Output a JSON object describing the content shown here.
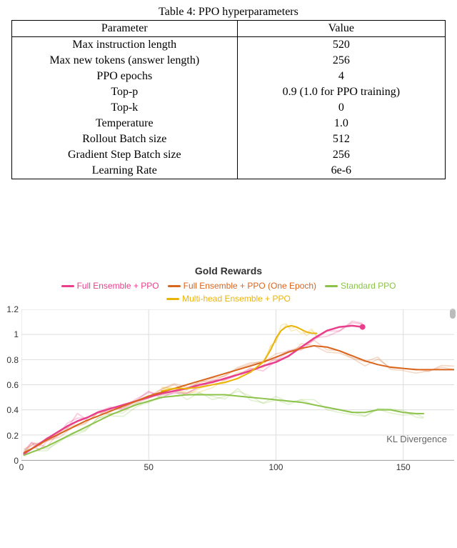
{
  "table": {
    "caption": "Table 4: PPO hyperparameters",
    "columns": [
      "Parameter",
      "Value"
    ],
    "rows": [
      [
        "Max instruction length",
        "520"
      ],
      [
        "Max new tokens (answer length)",
        "256"
      ],
      [
        "PPO epochs",
        "4"
      ],
      [
        "Top-p",
        "0.9 (1.0 for PPO training)"
      ],
      [
        "Top-k",
        "0"
      ],
      [
        "Temperature",
        "1.0"
      ],
      [
        "Rollout Batch size",
        "512"
      ],
      [
        "Gradient Step Batch size",
        "256"
      ],
      [
        "Learning Rate",
        "6e-6"
      ]
    ],
    "col_widths": [
      "52%",
      "48%"
    ],
    "caption_fontsize": 16,
    "cell_fontsize": 16
  },
  "chart": {
    "type": "line",
    "title": "Gold Rewards",
    "title_fontsize": 14,
    "title_color": "#333333",
    "xlabel": "KL Divergence",
    "xlabel_fontsize": 13,
    "xlabel_color": "#666666",
    "xlim": [
      0,
      170
    ],
    "ylim": [
      0,
      1.2
    ],
    "xticks": [
      0,
      50,
      100,
      150
    ],
    "yticks": [
      0,
      0.2,
      0.4,
      0.6,
      0.8,
      1,
      1.2
    ],
    "background_color": "#ffffff",
    "grid_color": "#dddddd",
    "axis_color": "#aaaaaa",
    "tick_fontsize": 12,
    "tick_color": "#333333",
    "legend_fontsize": 12,
    "series": [
      {
        "name": "Full Ensemble + PPO",
        "color": "#e83e8c",
        "line_width": 2.5,
        "data": [
          [
            1,
            0.05
          ],
          [
            4,
            0.09
          ],
          [
            7,
            0.13
          ],
          [
            10,
            0.17
          ],
          [
            14,
            0.22
          ],
          [
            18,
            0.27
          ],
          [
            22,
            0.31
          ],
          [
            26,
            0.34
          ],
          [
            30,
            0.38
          ],
          [
            35,
            0.41
          ],
          [
            40,
            0.44
          ],
          [
            45,
            0.47
          ],
          [
            50,
            0.5
          ],
          [
            55,
            0.53
          ],
          [
            60,
            0.55
          ],
          [
            65,
            0.57
          ],
          [
            70,
            0.6
          ],
          [
            75,
            0.62
          ],
          [
            80,
            0.65
          ],
          [
            85,
            0.68
          ],
          [
            90,
            0.71
          ],
          [
            95,
            0.75
          ],
          [
            100,
            0.78
          ],
          [
            105,
            0.83
          ],
          [
            110,
            0.9
          ],
          [
            115,
            0.97
          ],
          [
            120,
            1.03
          ],
          [
            125,
            1.06
          ],
          [
            130,
            1.07
          ],
          [
            134,
            1.06
          ]
        ],
        "end_marker": {
          "x": 134,
          "y": 1.06,
          "size": 4
        }
      },
      {
        "name": "Full Ensemble + PPO (One Epoch)",
        "color": "#d9641c",
        "line_width": 2,
        "data": [
          [
            1,
            0.06
          ],
          [
            5,
            0.1
          ],
          [
            10,
            0.16
          ],
          [
            15,
            0.21
          ],
          [
            20,
            0.26
          ],
          [
            25,
            0.31
          ],
          [
            30,
            0.35
          ],
          [
            35,
            0.39
          ],
          [
            40,
            0.43
          ],
          [
            45,
            0.47
          ],
          [
            50,
            0.51
          ],
          [
            55,
            0.54
          ],
          [
            60,
            0.57
          ],
          [
            65,
            0.6
          ],
          [
            70,
            0.63
          ],
          [
            75,
            0.66
          ],
          [
            80,
            0.69
          ],
          [
            85,
            0.72
          ],
          [
            90,
            0.75
          ],
          [
            95,
            0.78
          ],
          [
            100,
            0.82
          ],
          [
            105,
            0.86
          ],
          [
            110,
            0.89
          ],
          [
            115,
            0.91
          ],
          [
            120,
            0.9
          ],
          [
            125,
            0.87
          ],
          [
            130,
            0.83
          ],
          [
            135,
            0.79
          ],
          [
            140,
            0.76
          ],
          [
            145,
            0.74
          ],
          [
            150,
            0.73
          ],
          [
            155,
            0.72
          ],
          [
            160,
            0.72
          ],
          [
            165,
            0.72
          ],
          [
            170,
            0.72
          ]
        ]
      },
      {
        "name": "Standard PPO",
        "color": "#8bc34a",
        "line_width": 2,
        "data": [
          [
            1,
            0.04
          ],
          [
            5,
            0.07
          ],
          [
            10,
            0.11
          ],
          [
            15,
            0.16
          ],
          [
            20,
            0.21
          ],
          [
            25,
            0.26
          ],
          [
            30,
            0.31
          ],
          [
            35,
            0.36
          ],
          [
            40,
            0.4
          ],
          [
            45,
            0.44
          ],
          [
            50,
            0.47
          ],
          [
            55,
            0.5
          ],
          [
            60,
            0.51
          ],
          [
            65,
            0.52
          ],
          [
            70,
            0.52
          ],
          [
            75,
            0.52
          ],
          [
            80,
            0.52
          ],
          [
            85,
            0.51
          ],
          [
            90,
            0.5
          ],
          [
            95,
            0.49
          ],
          [
            100,
            0.48
          ],
          [
            105,
            0.47
          ],
          [
            110,
            0.46
          ],
          [
            115,
            0.44
          ],
          [
            120,
            0.42
          ],
          [
            125,
            0.4
          ],
          [
            130,
            0.38
          ],
          [
            135,
            0.38
          ],
          [
            140,
            0.4
          ],
          [
            145,
            0.4
          ],
          [
            150,
            0.38
          ],
          [
            155,
            0.37
          ],
          [
            158,
            0.37
          ]
        ]
      },
      {
        "name": "Multi-head Ensemble + PPO",
        "color": "#eab308",
        "line_width": 2,
        "data": [
          [
            55,
            0.55
          ],
          [
            60,
            0.57
          ],
          [
            65,
            0.57
          ],
          [
            70,
            0.58
          ],
          [
            75,
            0.6
          ],
          [
            80,
            0.62
          ],
          [
            85,
            0.65
          ],
          [
            90,
            0.7
          ],
          [
            95,
            0.78
          ],
          [
            98,
            0.88
          ],
          [
            100,
            0.97
          ],
          [
            102,
            1.03
          ],
          [
            104,
            1.06
          ],
          [
            106,
            1.07
          ],
          [
            108,
            1.06
          ],
          [
            110,
            1.04
          ],
          [
            112,
            1.02
          ],
          [
            114,
            1.01
          ],
          [
            116,
            1.01
          ]
        ]
      }
    ],
    "faded_series_opacity": 0.25
  }
}
